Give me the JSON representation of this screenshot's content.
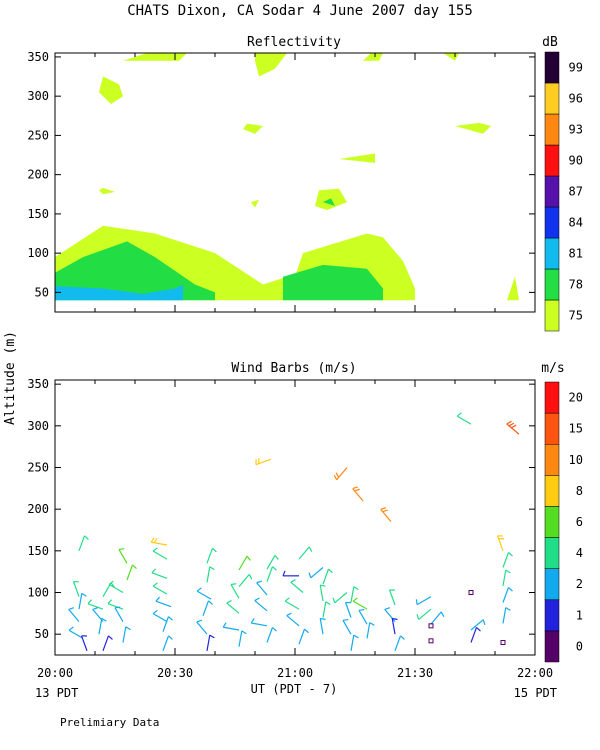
{
  "header": {
    "title": "CHATS Dixon, CA  Sodar    4 June 2007   day 155"
  },
  "footer": {
    "left_date": "13 PDT",
    "right_date": "15 PDT",
    "note": "Prelimiary Data"
  },
  "chart_data": [
    {
      "type": "heatmap",
      "title": "Reflectivity",
      "ylim": [
        25,
        355
      ],
      "xlim": [
        "20:00",
        "22:00"
      ],
      "yticks": [
        50,
        100,
        150,
        200,
        250,
        300,
        350
      ],
      "colorbar": {
        "unit": "dB",
        "labels": [
          "75",
          "78",
          "81",
          "84",
          "87",
          "90",
          "93",
          "96",
          "99"
        ],
        "colors": [
          "#ccff22",
          "#22dd44",
          "#11bbee",
          "#1133ee",
          "#5511aa",
          "#ff1111",
          "#ff8811",
          "#ffcc22",
          "#220033"
        ]
      },
      "regions": [
        {
          "level": "75",
          "points": [
            [
              "20:00",
              60
            ],
            [
              "20:00",
              95
            ],
            [
              "20:12",
              135
            ],
            [
              "20:25",
              125
            ],
            [
              "20:40",
              100
            ],
            [
              "20:52",
              60
            ],
            [
              "20:58",
              70
            ],
            [
              "21:00",
              70
            ],
            [
              "21:02",
              100
            ],
            [
              "21:18",
              125
            ],
            [
              "21:22",
              120
            ],
            [
              "21:27",
              90
            ],
            [
              "21:30",
              55
            ],
            [
              "21:30",
              40
            ],
            [
              "20:00",
              40
            ]
          ]
        },
        {
          "level": "78",
          "points": [
            [
              "20:00",
              45
            ],
            [
              "20:00",
              75
            ],
            [
              "20:07",
              95
            ],
            [
              "20:18",
              115
            ],
            [
              "20:25",
              95
            ],
            [
              "20:35",
              60
            ],
            [
              "20:40",
              50
            ],
            [
              "20:40",
              40
            ],
            [
              "20:00",
              40
            ]
          ]
        },
        {
          "level": "78",
          "points": [
            [
              "20:57",
              70
            ],
            [
              "21:07",
              85
            ],
            [
              "21:18",
              80
            ],
            [
              "21:22",
              55
            ],
            [
              "21:22",
              40
            ],
            [
              "20:57",
              40
            ]
          ]
        },
        {
          "level": "81",
          "points": [
            [
              "20:00",
              40
            ],
            [
              "20:00",
              58
            ],
            [
              "20:12",
              55
            ],
            [
              "20:22",
              48
            ],
            [
              "20:30",
              55
            ],
            [
              "20:32",
              60
            ],
            [
              "20:32",
              40
            ]
          ]
        },
        {
          "level": "75",
          "points": [
            [
              "21:53",
              40
            ],
            [
              "21:55",
              70
            ],
            [
              "21:56",
              40
            ]
          ]
        },
        {
          "level": "75",
          "points": [
            [
              "20:12",
              325
            ],
            [
              "20:16",
              315
            ],
            [
              "20:17",
              300
            ],
            [
              "20:14",
              290
            ],
            [
              "20:11",
              305
            ]
          ]
        },
        {
          "level": "75",
          "points": [
            [
              "20:17",
              345
            ],
            [
              "20:23",
              355
            ],
            [
              "20:33",
              355
            ],
            [
              "20:31",
              345
            ]
          ]
        },
        {
          "level": "75",
          "points": [
            [
              "20:50",
              355
            ],
            [
              "20:58",
              355
            ],
            [
              "20:55",
              335
            ],
            [
              "20:51",
              325
            ],
            [
              "20:50",
              345
            ]
          ]
        },
        {
          "level": "75",
          "points": [
            [
              "21:17",
              345
            ],
            [
              "21:19",
              355
            ],
            [
              "21:22",
              355
            ],
            [
              "21:21",
              345
            ]
          ]
        },
        {
          "level": "75",
          "points": [
            [
              "21:37",
              355
            ],
            [
              "21:41",
              355
            ],
            [
              "21:40",
              345
            ]
          ]
        },
        {
          "level": "75",
          "points": [
            [
              "20:48",
              265
            ],
            [
              "20:52",
              262
            ],
            [
              "20:50",
              252
            ],
            [
              "20:47",
              258
            ]
          ]
        },
        {
          "level": "75",
          "points": [
            [
              "21:40",
              262
            ],
            [
              "21:46",
              266
            ],
            [
              "21:49",
              262
            ],
            [
              "21:47",
              252
            ]
          ]
        },
        {
          "level": "75",
          "points": [
            [
              "21:11",
              220
            ],
            [
              "21:20",
              227
            ],
            [
              "21:20",
              215
            ]
          ]
        },
        {
          "level": "75",
          "points": [
            [
              "20:11",
              180
            ],
            [
              "20:12",
              175
            ],
            [
              "20:15",
              178
            ],
            [
              "20:12",
              183
            ]
          ]
        },
        {
          "level": "75",
          "points": [
            [
              "20:49",
              165
            ],
            [
              "20:51",
              168
            ],
            [
              "20:50",
              158
            ]
          ]
        },
        {
          "level": "75",
          "points": [
            [
              "21:06",
              180
            ],
            [
              "21:11",
              182
            ],
            [
              "21:13",
              165
            ],
            [
              "21:08",
              155
            ],
            [
              "21:05",
              160
            ]
          ]
        },
        {
          "level": "78",
          "points": [
            [
              "21:07",
              165
            ],
            [
              "21:09",
              170
            ],
            [
              "21:10",
              160
            ]
          ]
        }
      ]
    },
    {
      "type": "scatter",
      "title": "Wind Barbs (m/s)",
      "ylabel": "Altitude (m)",
      "xlabel": "UT  (PDT - 7)",
      "xticks": [
        "20:00",
        "20:30",
        "21:00",
        "21:30",
        "22:00"
      ],
      "yticks": [
        50,
        100,
        150,
        200,
        250,
        300,
        350
      ],
      "ylim": [
        25,
        355
      ],
      "colorbar": {
        "unit": "m/s",
        "labels": [
          "0",
          "1",
          "2",
          "4",
          "6",
          "8",
          "10",
          "15",
          "20"
        ],
        "colors": [
          "#550066",
          "#2222dd",
          "#11aaee",
          "#22dd88",
          "#55dd22",
          "#ffcc11",
          "#ff8811",
          "#ff5511",
          "#ff1111"
        ]
      },
      "barbs": [
        {
          "t": "20:06",
          "z": 150,
          "dir": 20,
          "spd": 4
        },
        {
          "t": "20:06",
          "z": 95,
          "dir": 340,
          "spd": 4
        },
        {
          "t": "20:06",
          "z": 80,
          "dir": 10,
          "spd": 3
        },
        {
          "t": "20:06",
          "z": 65,
          "dir": 320,
          "spd": 3
        },
        {
          "t": "20:07",
          "z": 45,
          "dir": 300,
          "spd": 2
        },
        {
          "t": "20:08",
          "z": 30,
          "dir": 340,
          "spd": 1
        },
        {
          "t": "20:12",
          "z": 95,
          "dir": 30,
          "spd": 5
        },
        {
          "t": "20:12",
          "z": 80,
          "dir": 290,
          "spd": 4
        },
        {
          "t": "20:12",
          "z": 65,
          "dir": 320,
          "spd": 3
        },
        {
          "t": "20:11",
          "z": 50,
          "dir": 10,
          "spd": 3
        },
        {
          "t": "20:12",
          "z": 30,
          "dir": 20,
          "spd": 1
        },
        {
          "t": "20:18",
          "z": 135,
          "dir": 330,
          "spd": 6
        },
        {
          "t": "20:18",
          "z": 115,
          "dir": 20,
          "spd": 7
        },
        {
          "t": "20:17",
          "z": 100,
          "dir": 300,
          "spd": 5
        },
        {
          "t": "20:17",
          "z": 80,
          "dir": 290,
          "spd": 4
        },
        {
          "t": "20:17",
          "z": 65,
          "dir": 330,
          "spd": 3
        },
        {
          "t": "20:17",
          "z": 40,
          "dir": 10,
          "spd": 2
        },
        {
          "t": "20:28",
          "z": 157,
          "dir": 280,
          "spd": 8
        },
        {
          "t": "20:28",
          "z": 140,
          "dir": 300,
          "spd": 5
        },
        {
          "t": "20:28",
          "z": 117,
          "dir": 290,
          "spd": 4
        },
        {
          "t": "20:28",
          "z": 98,
          "dir": 300,
          "spd": 4
        },
        {
          "t": "20:29",
          "z": 83,
          "dir": 290,
          "spd": 3
        },
        {
          "t": "20:28",
          "z": 65,
          "dir": 300,
          "spd": 3
        },
        {
          "t": "20:27",
          "z": 53,
          "dir": 20,
          "spd": 3
        },
        {
          "t": "20:27",
          "z": 30,
          "dir": 20,
          "spd": 2
        },
        {
          "t": "20:38",
          "z": 135,
          "dir": 20,
          "spd": 4
        },
        {
          "t": "20:38",
          "z": 112,
          "dir": 10,
          "spd": 5
        },
        {
          "t": "20:39",
          "z": 92,
          "dir": 300,
          "spd": 3
        },
        {
          "t": "20:37",
          "z": 72,
          "dir": 20,
          "spd": 3
        },
        {
          "t": "20:38",
          "z": 50,
          "dir": 320,
          "spd": 2
        },
        {
          "t": "20:38",
          "z": 30,
          "dir": 10,
          "spd": 1
        },
        {
          "t": "20:46",
          "z": 127,
          "dir": 30,
          "spd": 6
        },
        {
          "t": "20:46",
          "z": 107,
          "dir": 40,
          "spd": 5
        },
        {
          "t": "20:46",
          "z": 93,
          "dir": 330,
          "spd": 4
        },
        {
          "t": "20:46",
          "z": 75,
          "dir": 310,
          "spd": 4
        },
        {
          "t": "20:46",
          "z": 55,
          "dir": 280,
          "spd": 3
        },
        {
          "t": "20:46",
          "z": 35,
          "dir": 10,
          "spd": 2
        },
        {
          "t": "20:54",
          "z": 260,
          "dir": 250,
          "spd": 8
        },
        {
          "t": "20:53",
          "z": 128,
          "dir": 30,
          "spd": 5
        },
        {
          "t": "20:53",
          "z": 113,
          "dir": 20,
          "spd": 4
        },
        {
          "t": "20:53",
          "z": 97,
          "dir": 320,
          "spd": 3
        },
        {
          "t": "20:53",
          "z": 78,
          "dir": 310,
          "spd": 3
        },
        {
          "t": "20:53",
          "z": 60,
          "dir": 280,
          "spd": 3
        },
        {
          "t": "20:53",
          "z": 40,
          "dir": 20,
          "spd": 2
        },
        {
          "t": "21:01",
          "z": 140,
          "dir": 40,
          "spd": 5
        },
        {
          "t": "21:01",
          "z": 120,
          "dir": 270,
          "spd": 1
        },
        {
          "t": "21:02",
          "z": 100,
          "dir": 310,
          "spd": 4
        },
        {
          "t": "21:01",
          "z": 80,
          "dir": 300,
          "spd": 4
        },
        {
          "t": "21:01",
          "z": 60,
          "dir": 310,
          "spd": 3
        },
        {
          "t": "21:01",
          "z": 38,
          "dir": 20,
          "spd": 2
        },
        {
          "t": "21:07",
          "z": 130,
          "dir": 230,
          "spd": 3
        },
        {
          "t": "21:07",
          "z": 110,
          "dir": 20,
          "spd": 5
        },
        {
          "t": "21:07",
          "z": 90,
          "dir": 350,
          "spd": 4
        },
        {
          "t": "21:07",
          "z": 70,
          "dir": 10,
          "spd": 4
        },
        {
          "t": "21:07",
          "z": 50,
          "dir": 350,
          "spd": 3
        },
        {
          "t": "21:13",
          "z": 250,
          "dir": 220,
          "spd": 10
        },
        {
          "t": "21:13",
          "z": 100,
          "dir": 230,
          "spd": 5
        },
        {
          "t": "21:14",
          "z": 88,
          "dir": 10,
          "spd": 4
        },
        {
          "t": "21:14",
          "z": 70,
          "dir": 340,
          "spd": 3
        },
        {
          "t": "21:14",
          "z": 50,
          "dir": 330,
          "spd": 3
        },
        {
          "t": "21:14",
          "z": 30,
          "dir": 10,
          "spd": 2
        },
        {
          "t": "21:17",
          "z": 210,
          "dir": 320,
          "spd": 10
        },
        {
          "t": "21:18",
          "z": 80,
          "dir": 300,
          "spd": 7
        },
        {
          "t": "21:18",
          "z": 62,
          "dir": 330,
          "spd": 3
        },
        {
          "t": "21:18",
          "z": 45,
          "dir": 10,
          "spd": 2
        },
        {
          "t": "21:24",
          "z": 185,
          "dir": 320,
          "spd": 10
        },
        {
          "t": "21:25",
          "z": 85,
          "dir": 340,
          "spd": 4
        },
        {
          "t": "21:25",
          "z": 65,
          "dir": 320,
          "spd": 3
        },
        {
          "t": "21:25",
          "z": 50,
          "dir": 350,
          "spd": 1
        },
        {
          "t": "21:25",
          "z": 30,
          "dir": 20,
          "spd": 2
        },
        {
          "t": "21:34",
          "z": 95,
          "dir": 240,
          "spd": 3
        },
        {
          "t": "21:34",
          "z": 80,
          "dir": 230,
          "spd": 4
        },
        {
          "t": "21:34",
          "z": 62,
          "dir": 40,
          "spd": 3
        },
        {
          "t": "21:34",
          "z": 42,
          "dir": 0,
          "spd": 0
        },
        {
          "t": "21:34",
          "z": 60,
          "dir": 0,
          "spd": 0
        },
        {
          "t": "21:44",
          "z": 302,
          "dir": 300,
          "spd": 5
        },
        {
          "t": "21:44",
          "z": 55,
          "dir": 50,
          "spd": 3
        },
        {
          "t": "21:44",
          "z": 40,
          "dir": 20,
          "spd": 1
        },
        {
          "t": "21:44",
          "z": 100,
          "dir": 0,
          "spd": 0
        },
        {
          "t": "21:52",
          "z": 150,
          "dir": 340,
          "spd": 8
        },
        {
          "t": "21:52",
          "z": 130,
          "dir": 20,
          "spd": 4
        },
        {
          "t": "21:52",
          "z": 108,
          "dir": 10,
          "spd": 4
        },
        {
          "t": "21:52",
          "z": 88,
          "dir": 20,
          "spd": 3
        },
        {
          "t": "21:52",
          "z": 63,
          "dir": 10,
          "spd": 3
        },
        {
          "t": "21:52",
          "z": 40,
          "dir": 0,
          "spd": 0
        },
        {
          "t": "21:56",
          "z": 290,
          "dir": 310,
          "spd": 15
        }
      ]
    }
  ]
}
